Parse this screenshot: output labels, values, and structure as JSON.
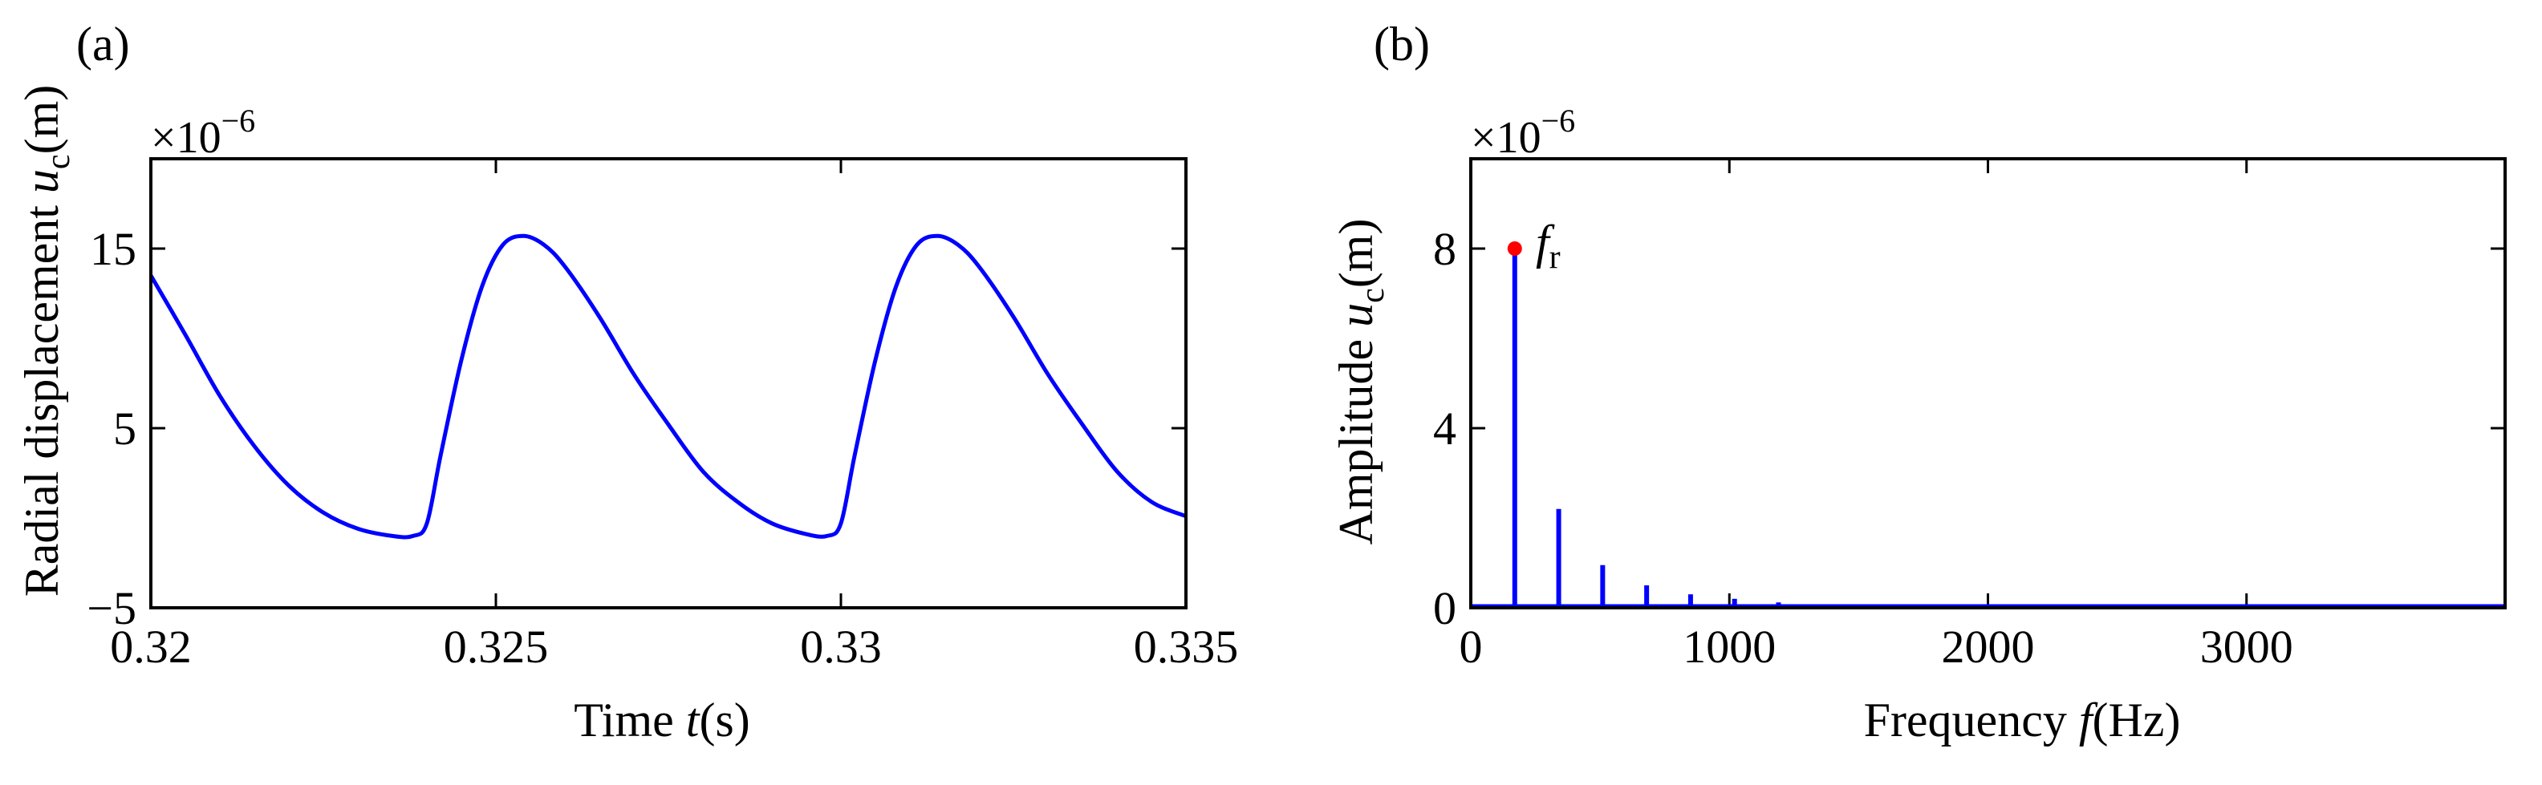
{
  "chart_data": [
    {
      "panel": "(a)",
      "type": "line",
      "xlabel": {
        "prefix": "Time ",
        "var": "t",
        "unit": "(s)"
      },
      "ylabel": {
        "prefix": "Radial displacement ",
        "var": "u",
        "sub": "c",
        "unit": "(m)"
      },
      "y_exponent": {
        "base": "×10",
        "power": "−6"
      },
      "xlim": [
        0.32,
        0.335
      ],
      "ylim": [
        -5,
        20
      ],
      "xticks": [
        0.32,
        0.325,
        0.33,
        0.335
      ],
      "xtick_labels": [
        "0.32",
        "0.325",
        "0.33",
        "0.335"
      ],
      "yticks": [
        -5,
        5,
        15
      ],
      "ytick_labels": [
        "−5",
        "5",
        "15"
      ],
      "series": [
        {
          "name": "u_c(t)",
          "color": "#0000ff",
          "x": [
            0.32,
            0.3205,
            0.321,
            0.3215,
            0.322,
            0.3225,
            0.323,
            0.3235,
            0.3238,
            0.324,
            0.3242,
            0.3245,
            0.3248,
            0.3251,
            0.3254,
            0.3257,
            0.326,
            0.3265,
            0.327,
            0.3275,
            0.328,
            0.3285,
            0.329,
            0.3295,
            0.3298,
            0.33,
            0.3302,
            0.3305,
            0.3308,
            0.3311,
            0.3314,
            0.3317,
            0.332,
            0.3325,
            0.333,
            0.3335,
            0.334,
            0.3345,
            0.335
          ],
          "y": [
            13.5,
            10.2,
            6.8,
            4.0,
            1.8,
            0.3,
            -0.6,
            -1.0,
            -1.0,
            -0.3,
            3.5,
            8.8,
            12.9,
            15.2,
            15.7,
            15.2,
            14.0,
            11.2,
            8.0,
            5.2,
            2.6,
            0.9,
            -0.3,
            -0.9,
            -1.0,
            -0.3,
            3.5,
            8.8,
            12.9,
            15.2,
            15.7,
            15.2,
            14.0,
            11.2,
            8.0,
            5.2,
            2.6,
            0.9,
            0.1
          ]
        }
      ]
    },
    {
      "panel": "(b)",
      "type": "line",
      "xlabel": {
        "prefix": "Frequency ",
        "var": "f",
        "unit": "(Hz)"
      },
      "ylabel": {
        "prefix": "Amplitude ",
        "var": "u",
        "sub": "c",
        "unit": "(m)"
      },
      "y_exponent": {
        "base": "×10",
        "power": "−6"
      },
      "xlim": [
        0,
        4000
      ],
      "ylim": [
        0,
        10
      ],
      "xticks": [
        0,
        1000,
        2000,
        3000
      ],
      "xtick_labels": [
        "0",
        "1000",
        "2000",
        "3000"
      ],
      "yticks": [
        0,
        4,
        8
      ],
      "ytick_labels": [
        "0",
        "4",
        "8"
      ],
      "series": [
        {
          "name": "spectrum",
          "color": "#0000ff",
          "x": [
            170,
            340,
            510,
            680,
            850,
            1020,
            1190,
            1360,
            1530
          ],
          "y": [
            8.0,
            2.2,
            0.95,
            0.5,
            0.3,
            0.2,
            0.12,
            0.08,
            0.05
          ]
        }
      ],
      "annotation": {
        "label_var": "f",
        "label_sub": "r",
        "x": 170,
        "y": 8.0,
        "marker_color": "#ff0000"
      }
    }
  ]
}
